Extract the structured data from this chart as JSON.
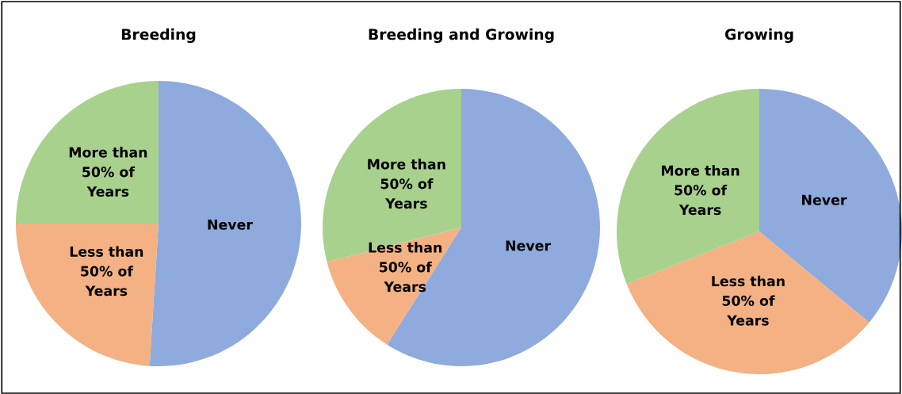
{
  "chart_data": [
    {
      "type": "pie",
      "title": "Breeding",
      "categories": [
        "Never",
        "Less than\n50% of\nYears",
        "More than\n50% of\nYears"
      ],
      "values": [
        51,
        24,
        25
      ],
      "colors": [
        "#8faadc",
        "#f4b183",
        "#a9d18e"
      ]
    },
    {
      "type": "pie",
      "title": "Breeding and Growing",
      "categories": [
        "Never",
        "Less than\n50% of\nYears",
        "More than\n50% of\nYears"
      ],
      "values": [
        59,
        12,
        29
      ],
      "colors": [
        "#8faadc",
        "#f4b183",
        "#a9d18e"
      ]
    },
    {
      "type": "pie",
      "title": "Growing",
      "categories": [
        "Never",
        "Less than\n50% of\nYears",
        "More than\n50% of\nYears"
      ],
      "values": [
        36,
        33,
        31
      ],
      "colors": [
        "#8faadc",
        "#f4b183",
        "#a9d18e"
      ]
    }
  ]
}
